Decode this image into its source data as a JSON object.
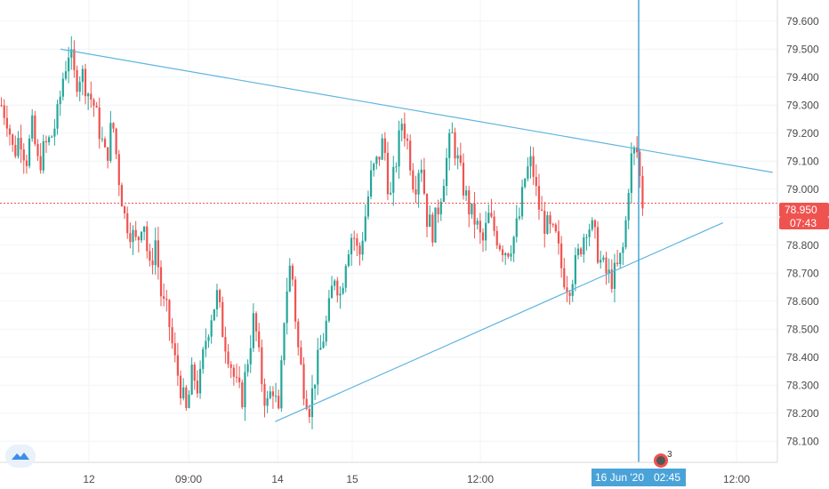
{
  "chart_data": {
    "type": "candlestick",
    "ylim": [
      78.05,
      79.65
    ],
    "y_ticks": [
      "79.600",
      "79.500",
      "79.400",
      "79.300",
      "79.200",
      "79.100",
      "79.000",
      "78.900",
      "78.800",
      "78.700",
      "78.600",
      "78.500",
      "78.400",
      "78.300",
      "78.200",
      "78.100"
    ],
    "x_ticks": [
      "12",
      "09:00",
      "14",
      "15",
      "12:00",
      "12:00"
    ],
    "cursor_date_label": "16 Jun '20",
    "cursor_time_label": "02:45",
    "last_price_label": "78.950",
    "countdown_label": "07:43",
    "last_price": 78.95,
    "colors": {
      "up": "#26a69a",
      "down": "#ef5350",
      "trendline": "#5fb4e0",
      "cursor": "#42a5d5",
      "price_line": "#ef5350"
    },
    "trendlines": [
      {
        "name": "",
        "points": [
          [
            0.073,
            79.5
          ],
          [
            0.932,
            79.06
          ]
        ]
      },
      {
        "name": "",
        "points": [
          [
            0.332,
            78.17
          ],
          [
            0.872,
            78.88
          ]
        ]
      }
    ],
    "candles_path": [
      79.3,
      79.25,
      79.12,
      79.2,
      79.1,
      79.22,
      79.08,
      79.15,
      79.18,
      79.25,
      79.4,
      79.5,
      79.38,
      79.42,
      79.35,
      79.3,
      79.2,
      79.1,
      79.25,
      79.05,
      78.9,
      78.85,
      78.8,
      78.92,
      78.7,
      78.82,
      78.6,
      78.55,
      78.4,
      78.3,
      78.2,
      78.35,
      78.28,
      78.45,
      78.55,
      78.62,
      78.48,
      78.4,
      78.3,
      78.25,
      78.4,
      78.55,
      78.35,
      78.22,
      78.3,
      78.18,
      78.6,
      78.75,
      78.45,
      78.3,
      78.22,
      78.35,
      78.45,
      78.55,
      78.7,
      78.62,
      78.78,
      78.85,
      78.75,
      78.9,
      79.05,
      79.1,
      79.18,
      78.95,
      79.1,
      79.25,
      79.15,
      79.0,
      79.12,
      78.9,
      78.85,
      78.95,
      79.08,
      79.2,
      79.1,
      79.0,
      78.92,
      78.88,
      78.8,
      78.9,
      78.85,
      78.8,
      78.78,
      78.82,
      78.9,
      79.05,
      79.1,
      78.95,
      78.88,
      78.85,
      78.82,
      78.7,
      78.65,
      78.72,
      78.8,
      78.88,
      78.85,
      78.75,
      78.7,
      78.68,
      78.72,
      78.8,
      79.1,
      79.15,
      78.95
    ]
  }
}
